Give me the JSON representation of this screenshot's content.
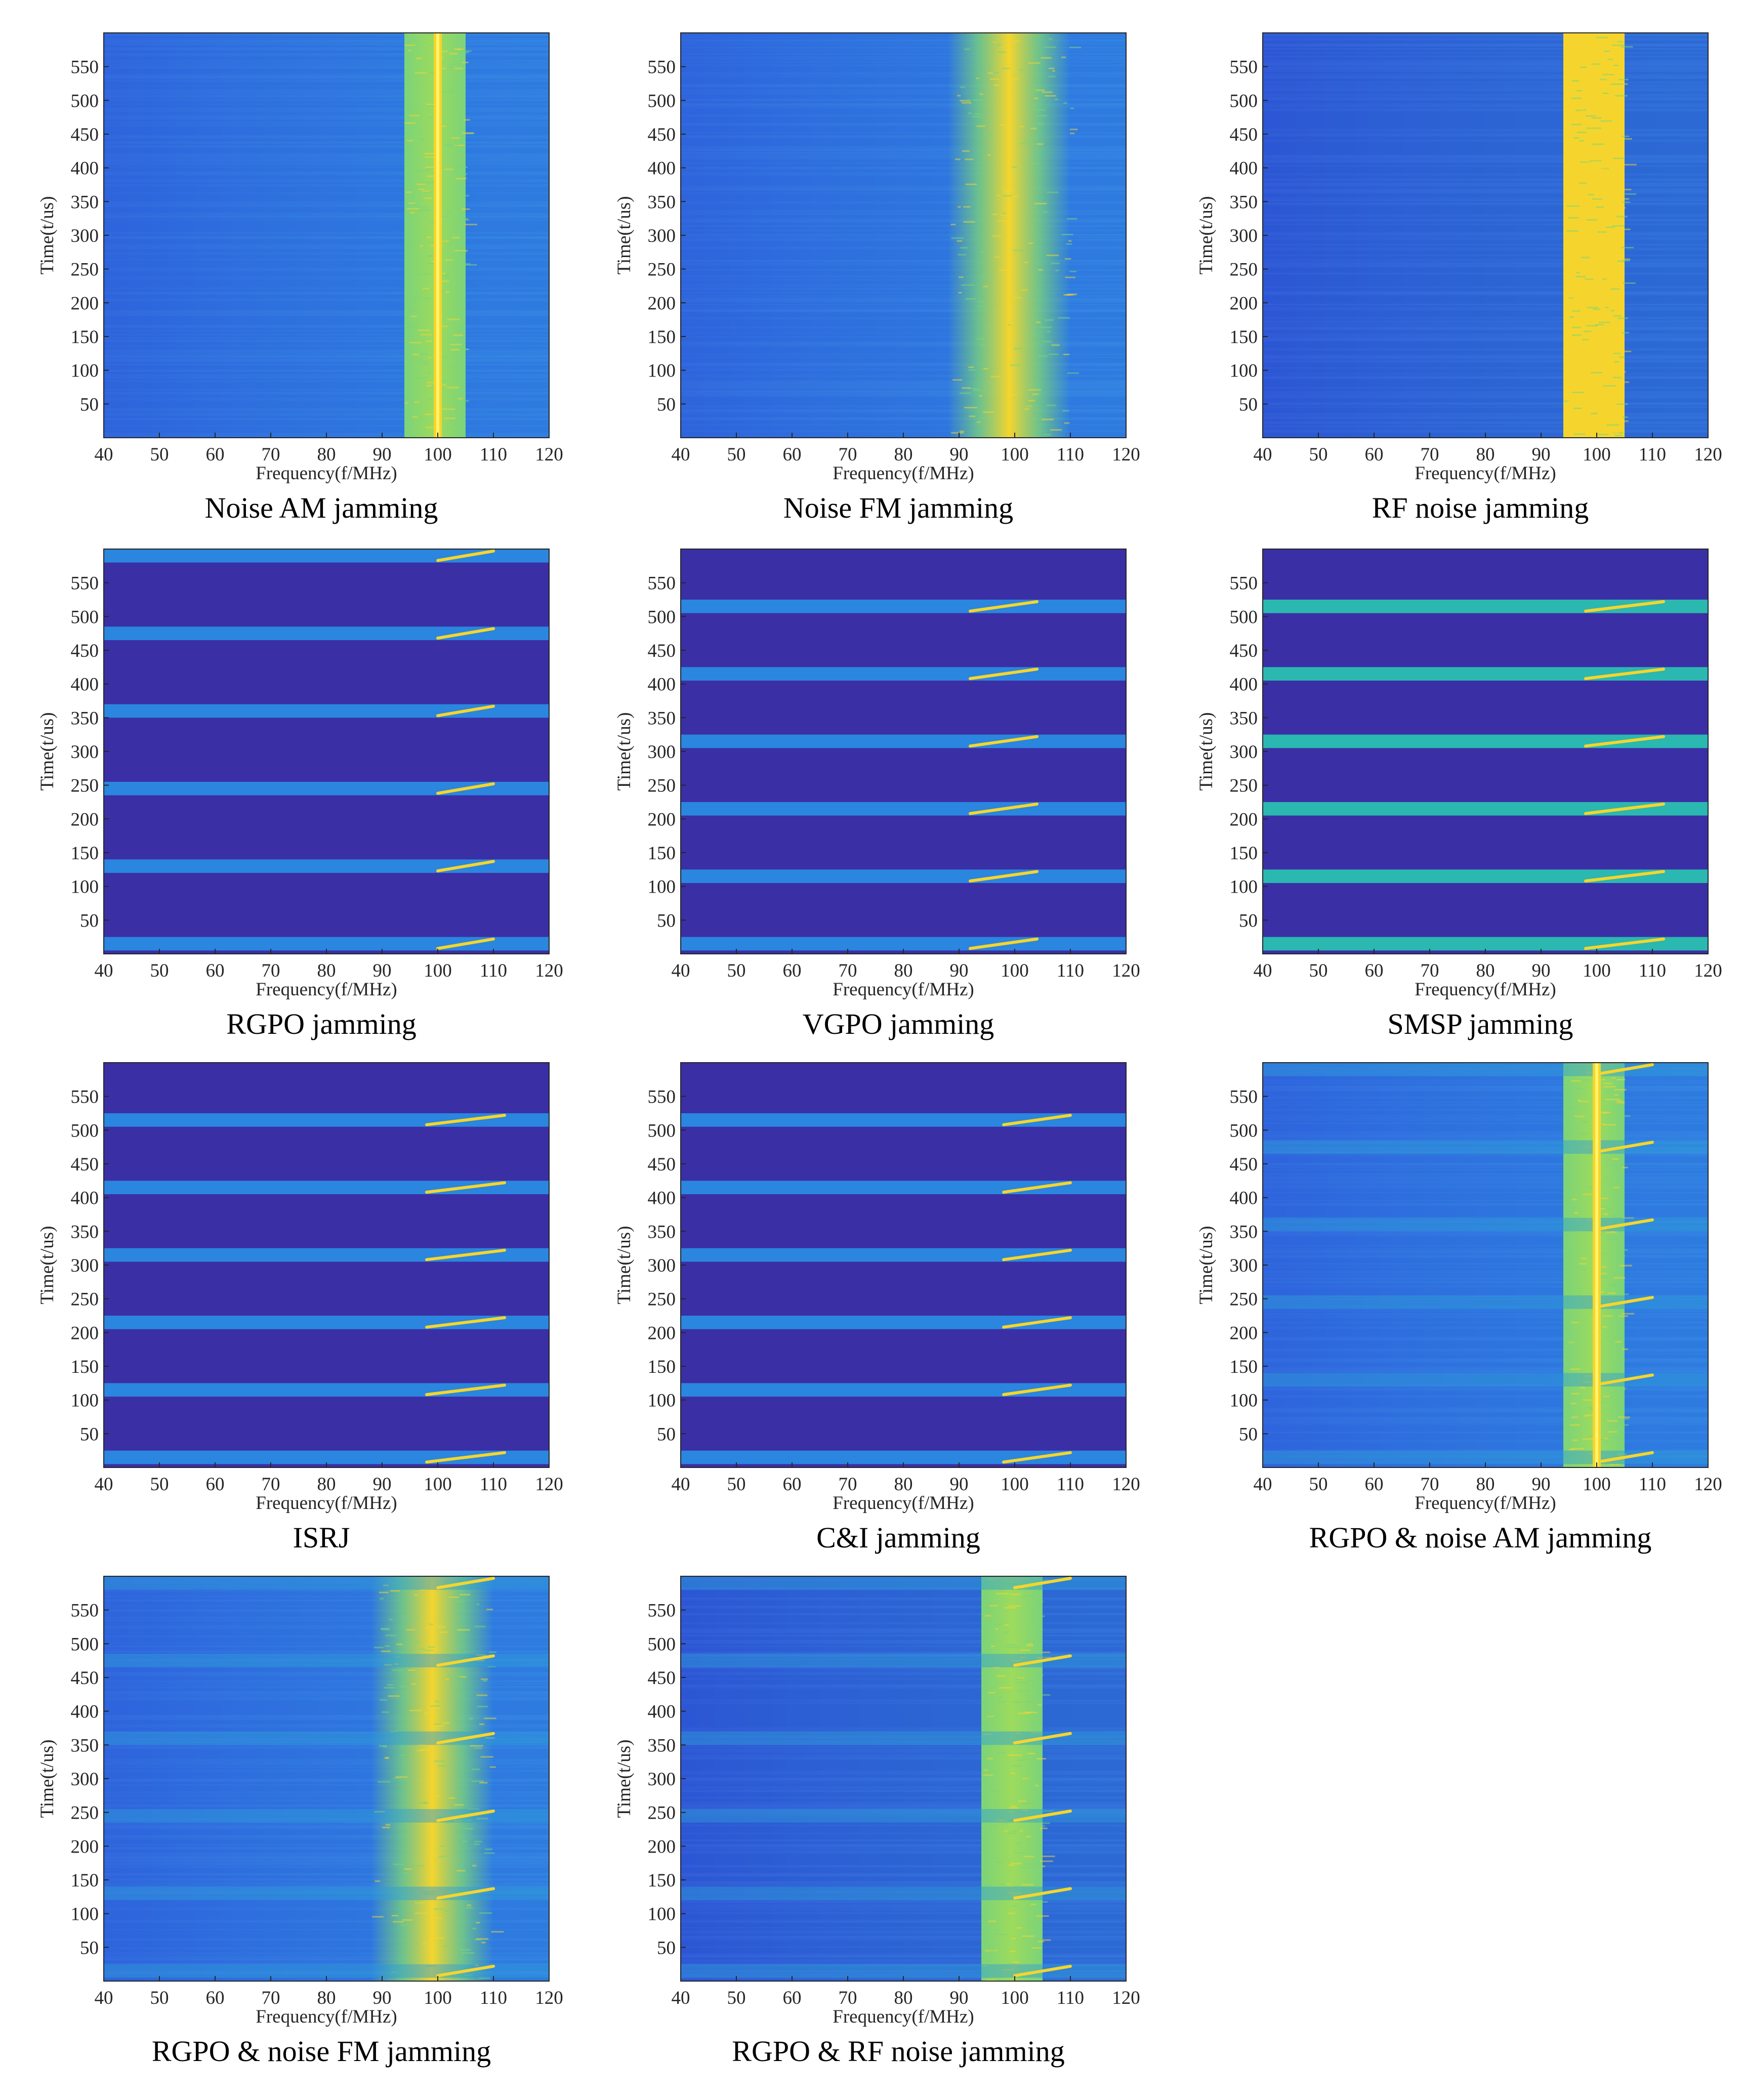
{
  "figure": {
    "axis": {
      "xlabel": "Frequency(f/MHz)",
      "ylabel": "Time(t/us)",
      "xlim": [
        40,
        120
      ],
      "ylim": [
        0,
        600
      ],
      "xticks": [
        "40",
        "50",
        "60",
        "70",
        "80",
        "90",
        "100",
        "110",
        "120"
      ],
      "yticks": [
        "50",
        "100",
        "150",
        "200",
        "250",
        "300",
        "350",
        "400",
        "450",
        "500",
        "550"
      ]
    },
    "colormap": {
      "low": "#3b2fa6",
      "mid_low": "#2f6fe0",
      "mid": "#23a9e0",
      "mid_high": "#7bd37a",
      "high": "#f5d52d",
      "peak": "#fff36a"
    }
  },
  "chart_data": [
    {
      "type": "heatmap",
      "id": "noise-am",
      "title": "Noise AM jamming",
      "xlabel": "Frequency(f/MHz)",
      "ylabel": "Time(t/us)",
      "xlim": [
        40,
        120
      ],
      "ylim": [
        0,
        600
      ],
      "background": "continuous_noise",
      "noise_band_mhz": [
        94,
        105
      ],
      "center_line_mhz": 100
    },
    {
      "type": "heatmap",
      "id": "noise-fm",
      "title": "Noise FM jamming",
      "xlabel": "Frequency(f/MHz)",
      "ylabel": "Time(t/us)",
      "xlim": [
        40,
        120
      ],
      "ylim": [
        0,
        600
      ],
      "background": "continuous_noise",
      "noise_band_mhz": [
        88,
        110
      ],
      "center_line_mhz": null
    },
    {
      "type": "heatmap",
      "id": "rf-noise",
      "title": "RF noise jamming",
      "xlabel": "Frequency(f/MHz)",
      "ylabel": "Time(t/us)",
      "xlim": [
        40,
        120
      ],
      "ylim": [
        0,
        600
      ],
      "background": "continuous_noise_dark",
      "noise_band_mhz": [
        94,
        105
      ],
      "center_line_mhz": null
    },
    {
      "type": "heatmap",
      "id": "rgpo",
      "title": "RGPO jamming",
      "xlabel": "Frequency(f/MHz)",
      "ylabel": "Time(t/us)",
      "xlim": [
        40,
        120
      ],
      "ylim": [
        0,
        600
      ],
      "background": "pulsed",
      "pulse_times_us": [
        15,
        130,
        245,
        360,
        475,
        590
      ],
      "pulse_width_us": 20,
      "chirp_mhz": [
        100,
        110
      ]
    },
    {
      "type": "heatmap",
      "id": "vgpo",
      "title": "VGPO jamming",
      "xlabel": "Frequency(f/MHz)",
      "ylabel": "Time(t/us)",
      "xlim": [
        40,
        120
      ],
      "ylim": [
        0,
        600
      ],
      "background": "pulsed",
      "pulse_times_us": [
        15,
        115,
        215,
        315,
        415,
        515
      ],
      "pulse_width_us": 20,
      "chirp_mhz": [
        92,
        104
      ]
    },
    {
      "type": "heatmap",
      "id": "smsp",
      "title": "SMSP jamming",
      "xlabel": "Frequency(f/MHz)",
      "ylabel": "Time(t/us)",
      "xlim": [
        40,
        120
      ],
      "ylim": [
        0,
        600
      ],
      "background": "pulsed_bright",
      "pulse_times_us": [
        15,
        115,
        215,
        315,
        415,
        515
      ],
      "pulse_width_us": 20,
      "chirp_mhz": [
        98,
        112
      ]
    },
    {
      "type": "heatmap",
      "id": "isrj",
      "title": "ISRJ",
      "xlabel": "Frequency(f/MHz)",
      "ylabel": "Time(t/us)",
      "xlim": [
        40,
        120
      ],
      "ylim": [
        0,
        600
      ],
      "background": "pulsed",
      "pulse_times_us": [
        15,
        115,
        215,
        315,
        415,
        515
      ],
      "pulse_width_us": 20,
      "chirp_mhz": [
        98,
        112
      ]
    },
    {
      "type": "heatmap",
      "id": "ci",
      "title": "C&I jamming",
      "xlabel": "Frequency(f/MHz)",
      "ylabel": "Time(t/us)",
      "xlim": [
        40,
        120
      ],
      "ylim": [
        0,
        600
      ],
      "background": "pulsed",
      "pulse_times_us": [
        15,
        115,
        215,
        315,
        415,
        515
      ],
      "pulse_width_us": 20,
      "chirp_mhz": [
        98,
        110
      ]
    },
    {
      "type": "heatmap",
      "id": "rgpo-am",
      "title": "RGPO & noise AM jamming",
      "xlabel": "Frequency(f/MHz)",
      "ylabel": "Time(t/us)",
      "xlim": [
        40,
        120
      ],
      "ylim": [
        0,
        600
      ],
      "background": "continuous_noise",
      "noise_band_mhz": [
        94,
        105
      ],
      "center_line_mhz": 100,
      "pulse_times_us": [
        15,
        130,
        245,
        360,
        475,
        590
      ],
      "pulse_width_us": 20,
      "chirp_mhz": [
        100,
        110
      ]
    },
    {
      "type": "heatmap",
      "id": "rgpo-fm",
      "title": "RGPO & noise FM jamming",
      "xlabel": "Frequency(f/MHz)",
      "ylabel": "Time(t/us)",
      "xlim": [
        40,
        120
      ],
      "ylim": [
        0,
        600
      ],
      "background": "continuous_noise",
      "noise_band_mhz": [
        88,
        110
      ],
      "center_line_mhz": null,
      "pulse_times_us": [
        15,
        130,
        245,
        360,
        475,
        590
      ],
      "pulse_width_us": 20,
      "chirp_mhz": [
        100,
        110
      ]
    },
    {
      "type": "heatmap",
      "id": "rgpo-rf",
      "title": "RGPO & RF noise jamming",
      "xlabel": "Frequency(f/MHz)",
      "ylabel": "Time(t/us)",
      "xlim": [
        40,
        120
      ],
      "ylim": [
        0,
        600
      ],
      "background": "continuous_noise_dark",
      "noise_band_mhz": [
        94,
        105
      ],
      "center_line_mhz": null,
      "pulse_times_us": [
        15,
        130,
        245,
        360,
        475,
        590
      ],
      "pulse_width_us": 20,
      "chirp_mhz": [
        100,
        110
      ]
    }
  ]
}
